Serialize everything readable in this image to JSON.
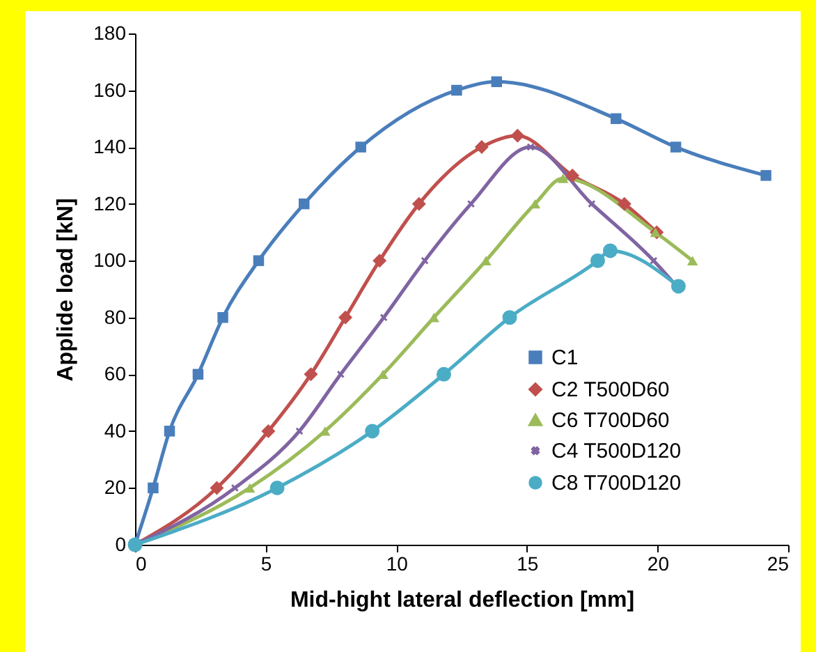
{
  "chart_data": {
    "type": "line",
    "xlabel": "Mid-hight lateral deflection [mm]",
    "ylabel": "Applide load [kN]",
    "xlim": [
      0,
      25
    ],
    "xticks": [
      0,
      5,
      10,
      15,
      20,
      25
    ],
    "ylim": [
      0,
      180
    ],
    "yticks": [
      0,
      20,
      40,
      60,
      80,
      100,
      120,
      140,
      160,
      180
    ],
    "grid": false,
    "legend": "bottom right",
    "line_style": "solid",
    "series": [
      {
        "name": "C1",
        "color": "#4a7ebb",
        "marker": "square",
        "x": [
          0,
          0.69,
          1.32,
          2.41,
          3.36,
          4.73,
          6.47,
          8.64,
          12.31,
          13.84,
          18.41,
          20.7,
          24.15
        ],
        "values": [
          0,
          20,
          40,
          60,
          80,
          100,
          120,
          140,
          160,
          163,
          150,
          140,
          130
        ]
      },
      {
        "name": "C2 T500D60",
        "color": "#c0504d",
        "marker": "diamond",
        "x": [
          0,
          3.13,
          5.1,
          6.73,
          8.05,
          9.36,
          10.87,
          13.27,
          14.64,
          16.74,
          18.73,
          19.97
        ],
        "values": [
          0,
          20,
          40,
          60,
          80,
          100,
          120,
          140,
          144,
          130,
          120,
          110
        ]
      },
      {
        "name": "C6 T700D60",
        "color": "#9bbb59",
        "marker": "triangle",
        "x": [
          0,
          4.39,
          7.27,
          9.49,
          11.44,
          13.43,
          15.31,
          16.38,
          19.92,
          21.34
        ],
        "values": [
          0,
          20,
          40,
          60,
          80,
          100,
          120,
          129,
          110,
          100
        ]
      },
      {
        "name": "C4 T500D120",
        "color": "#8064a2",
        "marker": "cross",
        "x": [
          0,
          3.82,
          6.29,
          7.87,
          9.52,
          11.09,
          12.86,
          15.14,
          17.48,
          19.85,
          20.83
        ],
        "values": [
          0,
          20,
          40,
          60,
          80,
          100,
          120,
          140,
          120,
          100,
          90
        ]
      },
      {
        "name": "C8 T700D120",
        "color": "#4bacc6",
        "marker": "circle",
        "x": [
          0,
          5.44,
          9.08,
          11.82,
          14.34,
          17.71,
          18.19,
          20.8
        ],
        "values": [
          0,
          20,
          40,
          60,
          80,
          100,
          103.5,
          91
        ]
      }
    ]
  }
}
